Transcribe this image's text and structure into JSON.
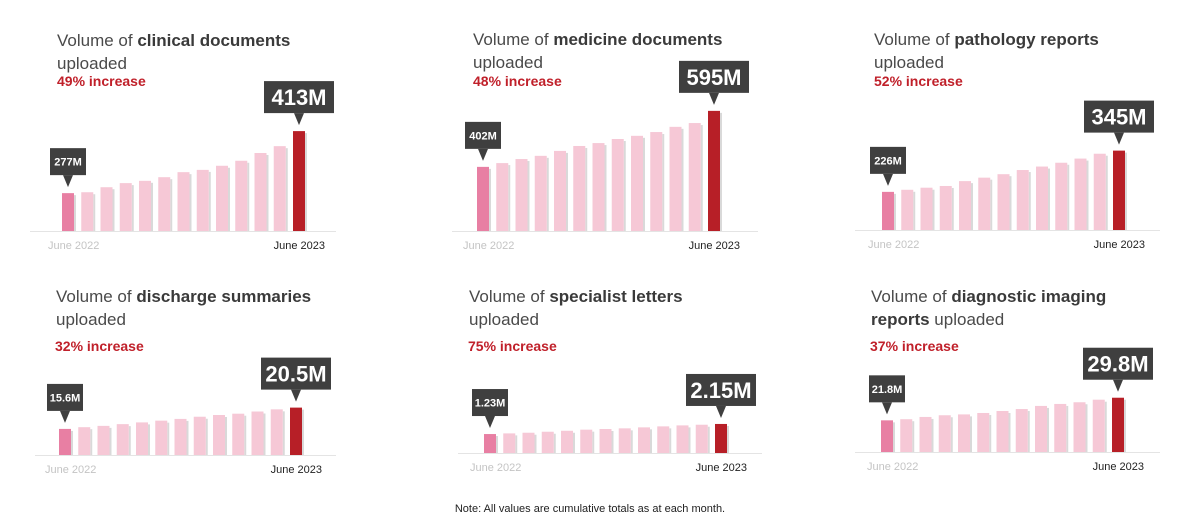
{
  "note": "Note: All values are cumulative totals as at each month.",
  "colors": {
    "first_bar": "#e87fa3",
    "mid_bar": "#f6c8d6",
    "last_bar": "#b71f27",
    "callout": "#3f3f3f",
    "increase_text": "#c0202a"
  },
  "chart_data": [
    {
      "type": "bar",
      "title_segments": [
        {
          "text": "Volume of ",
          "bold": false
        },
        {
          "text": "clinical documents",
          "bold": true
        },
        {
          "text": "\nuploaded",
          "bold": false
        }
      ],
      "increase": "49% increase",
      "x_start_label": "June 2022",
      "x_end_label": "June 2023",
      "first_label": "277M",
      "last_label": "413M",
      "values": [
        277,
        279,
        290,
        299,
        304,
        312,
        323,
        328,
        337,
        348,
        365,
        380,
        413
      ],
      "unit": "M",
      "ylim": [
        194,
        479
      ]
    },
    {
      "type": "bar",
      "title_segments": [
        {
          "text": "Volume of ",
          "bold": false
        },
        {
          "text": "medicine documents",
          "bold": true
        },
        {
          "text": "\nuploaded",
          "bold": false
        }
      ],
      "increase": "48% increase",
      "x_start_label": "June 2022",
      "x_end_label": "June 2023",
      "first_label": "402M",
      "last_label": "595M",
      "values": [
        402,
        415,
        429,
        440,
        457,
        474,
        484,
        498,
        509,
        522,
        540,
        553,
        595
      ],
      "unit": "M",
      "ylim": [
        181,
        629
      ]
    },
    {
      "type": "bar",
      "title_segments": [
        {
          "text": "Volume of ",
          "bold": false
        },
        {
          "text": "pathology reports",
          "bold": true
        },
        {
          "text": "\nuploaded",
          "bold": false
        }
      ],
      "increase": "52% increase",
      "x_start_label": "June 2022",
      "x_end_label": "June 2023",
      "first_label": "226M",
      "last_label": "345M",
      "values": [
        226,
        232,
        238,
        243,
        257,
        267,
        277,
        289,
        299,
        310,
        322,
        336,
        345
      ],
      "unit": "M",
      "ylim": [
        116,
        491
      ]
    },
    {
      "type": "bar",
      "title_segments": [
        {
          "text": "Volume of  ",
          "bold": false
        },
        {
          "text": "discharge summaries",
          "bold": true
        },
        {
          "text": "\nuploaded",
          "bold": false
        }
      ],
      "increase": "32% increase",
      "x_start_label": "June 2022",
      "x_end_label": "June 2023",
      "first_label": "15.6M",
      "last_label": "20.5M",
      "values": [
        15.6,
        16.0,
        16.3,
        16.7,
        17.1,
        17.5,
        17.9,
        18.4,
        18.8,
        19.1,
        19.6,
        20.1,
        20.5
      ],
      "unit": "M",
      "ylim": [
        9.6,
        28.0
      ]
    },
    {
      "type": "bar",
      "title_segments": [
        {
          "text": "Volume of ",
          "bold": false
        },
        {
          "text": "specialist letters",
          "bold": true
        },
        {
          "text": "\nuploaded",
          "bold": false
        }
      ],
      "increase": "75% increase",
      "x_start_label": "June 2022",
      "x_end_label": "June 2023",
      "first_label": "1.23M",
      "last_label": "2.15M",
      "values": [
        1.23,
        1.29,
        1.35,
        1.44,
        1.53,
        1.63,
        1.69,
        1.75,
        1.84,
        1.93,
        2.02,
        2.08,
        2.15
      ],
      "unit": "M",
      "ylim": [
        -0.5,
        6.8
      ]
    },
    {
      "type": "bar",
      "title_segments": [
        {
          "text": "Volume of ",
          "bold": false
        },
        {
          "text": "diagnostic imaging",
          "bold": true
        },
        {
          "text": "\n",
          "bold": false
        },
        {
          "text": "reports",
          "bold": true
        },
        {
          "text": " uploaded",
          "bold": false
        }
      ],
      "increase": "37%  increase",
      "x_start_label": "June 2022",
      "x_end_label": "June 2023",
      "first_label": "21.8M",
      "last_label": "29.8M",
      "values": [
        21.8,
        22.2,
        23.0,
        23.6,
        23.9,
        24.4,
        25.1,
        25.8,
        26.9,
        27.6,
        28.2,
        29.1,
        29.8
      ],
      "unit": "M",
      "ylim": [
        10.6,
        38.9
      ]
    }
  ]
}
